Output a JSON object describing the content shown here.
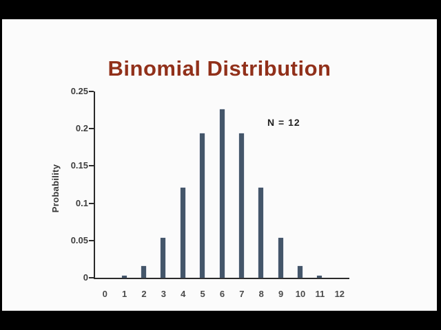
{
  "frame": {
    "background": "#000000",
    "panel_background": "#fbfbfb"
  },
  "chart_data": {
    "type": "bar",
    "title": "Binomial Distribution",
    "annotation": "N = 12",
    "xlabel": "",
    "ylabel": "Probability",
    "categories": [
      "0",
      "1",
      "2",
      "3",
      "4",
      "5",
      "6",
      "7",
      "8",
      "9",
      "10",
      "11",
      "12"
    ],
    "values": [
      0.0002,
      0.0029,
      0.0161,
      0.0537,
      0.1208,
      0.1934,
      0.2256,
      0.1934,
      0.1208,
      0.0537,
      0.0161,
      0.0029,
      0.0002
    ],
    "ylim": [
      0,
      0.25
    ],
    "yticks": [
      {
        "value": 0,
        "label": "0"
      },
      {
        "value": 0.05,
        "label": "0.05"
      },
      {
        "value": 0.1,
        "label": "0.1"
      },
      {
        "value": 0.15,
        "label": "0.15"
      },
      {
        "value": 0.2,
        "label": "0.2"
      },
      {
        "value": 0.25,
        "label": "0.25"
      }
    ],
    "grid": false,
    "legend": false,
    "bar_color": "#44566a",
    "title_color": "#91301a",
    "axis_color": "#2a2a2a",
    "tick_label_color": "#3d3d3d"
  }
}
